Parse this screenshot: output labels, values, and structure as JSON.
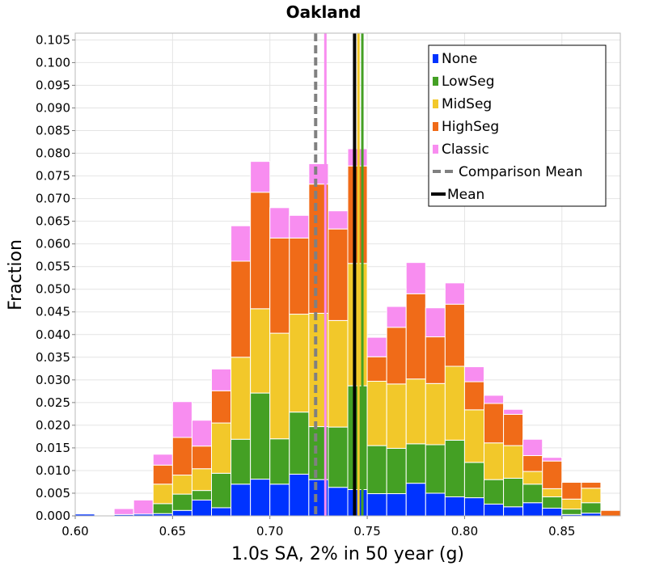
{
  "chart_data": {
    "type": "bar",
    "stacked": true,
    "title": "Oakland",
    "xlabel": "1.0s SA, 2% in 50 year (g)",
    "ylabel": "Fraction",
    "xlim": [
      0.6,
      0.88
    ],
    "ylim": [
      0.0,
      0.1065
    ],
    "grid": true,
    "legend_position": "top-right",
    "bin_width": 0.01,
    "x_ticks": [
      "0.60",
      "0.65",
      "0.70",
      "0.75",
      "0.80",
      "0.85"
    ],
    "x_tick_values": [
      0.6,
      0.65,
      0.7,
      0.75,
      0.8,
      0.85
    ],
    "y_ticks": [
      "0.000",
      "0.005",
      "0.010",
      "0.015",
      "0.020",
      "0.025",
      "0.030",
      "0.035",
      "0.040",
      "0.045",
      "0.050",
      "0.055",
      "0.060",
      "0.065",
      "0.070",
      "0.075",
      "0.080",
      "0.085",
      "0.090",
      "0.095",
      "0.100",
      "0.105"
    ],
    "y_tick_values": [
      0.0,
      0.005,
      0.01,
      0.015,
      0.02,
      0.025,
      0.03,
      0.035,
      0.04,
      0.045,
      0.05,
      0.055,
      0.06,
      0.065,
      0.07,
      0.075,
      0.08,
      0.085,
      0.09,
      0.095,
      0.1,
      0.105
    ],
    "bins": [
      0.605,
      0.615,
      0.625,
      0.635,
      0.645,
      0.655,
      0.665,
      0.675,
      0.685,
      0.695,
      0.705,
      0.715,
      0.725,
      0.735,
      0.745,
      0.755,
      0.765,
      0.775,
      0.785,
      0.795,
      0.805,
      0.815,
      0.825,
      0.835,
      0.845,
      0.855,
      0.865,
      0.875
    ],
    "series": [
      {
        "name": "None",
        "color": "#0033ff",
        "values": [
          0.0004,
          0.0,
          0.0003,
          0.0004,
          0.0005,
          0.0012,
          0.0035,
          0.0018,
          0.007,
          0.0081,
          0.007,
          0.0092,
          0.008,
          0.0063,
          0.0058,
          0.0049,
          0.0049,
          0.0072,
          0.005,
          0.0042,
          0.004,
          0.0026,
          0.002,
          0.0029,
          0.0017,
          0.0003,
          0.0006,
          0.0
        ]
      },
      {
        "name": "LowSeg",
        "color": "#44a024",
        "values": [
          0.0,
          0.0,
          0.0,
          0.0,
          0.0022,
          0.0036,
          0.0021,
          0.0076,
          0.0099,
          0.019,
          0.01,
          0.0137,
          0.0117,
          0.0133,
          0.0229,
          0.0106,
          0.01,
          0.0087,
          0.0107,
          0.0125,
          0.0078,
          0.0054,
          0.0063,
          0.0041,
          0.0025,
          0.0012,
          0.0023,
          0.0
        ]
      },
      {
        "name": "MidSeg",
        "color": "#f2c82a",
        "values": [
          0.0,
          0.0,
          0.0,
          0.0,
          0.0043,
          0.0042,
          0.0048,
          0.0111,
          0.0181,
          0.0186,
          0.0233,
          0.0216,
          0.025,
          0.0235,
          0.027,
          0.0142,
          0.0142,
          0.0143,
          0.0135,
          0.0163,
          0.0116,
          0.0081,
          0.0072,
          0.0028,
          0.0018,
          0.0022,
          0.0032,
          0.0
        ]
      },
      {
        "name": "HighSeg",
        "color": "#f06b18",
        "values": [
          0.0,
          0.0,
          0.0,
          0.0,
          0.0042,
          0.0083,
          0.005,
          0.0071,
          0.0212,
          0.0257,
          0.021,
          0.0168,
          0.0285,
          0.0202,
          0.0215,
          0.0054,
          0.0125,
          0.0188,
          0.0103,
          0.0137,
          0.0062,
          0.0087,
          0.0069,
          0.0035,
          0.0061,
          0.0037,
          0.0013,
          0.0012
        ]
      },
      {
        "name": "Classic",
        "color": "#f88df0",
        "values": [
          0.0,
          0.0,
          0.0013,
          0.0031,
          0.0024,
          0.0079,
          0.0057,
          0.0048,
          0.0078,
          0.0068,
          0.0067,
          0.005,
          0.0045,
          0.004,
          0.0038,
          0.0043,
          0.0046,
          0.0069,
          0.0064,
          0.0047,
          0.0033,
          0.0018,
          0.0011,
          0.0036,
          0.0008,
          0.0,
          0.0,
          0.0
        ]
      }
    ],
    "vertical_lines": [
      {
        "name": "Comparison Mean",
        "x": 0.7235,
        "color": "#808080",
        "style": "dashed"
      },
      {
        "name": "Mean",
        "x": 0.7435,
        "color": "#000000",
        "style": "solid"
      },
      {
        "name": "Classic mean",
        "x": 0.7285,
        "color": "#f88df0",
        "style": "solid"
      },
      {
        "name": "LowSeg mean",
        "x": 0.7475,
        "color": "#44a024",
        "style": "solid"
      },
      {
        "name": "MidSeg mean",
        "x": 0.7455,
        "color": "#f2c82a",
        "style": "solid"
      }
    ],
    "legend": [
      {
        "label": "None",
        "kind": "box",
        "color": "#0033ff"
      },
      {
        "label": "LowSeg",
        "kind": "box",
        "color": "#44a024"
      },
      {
        "label": "MidSeg",
        "kind": "box",
        "color": "#f2c82a"
      },
      {
        "label": "HighSeg",
        "kind": "box",
        "color": "#f06b18"
      },
      {
        "label": "Classic",
        "kind": "box",
        "color": "#f88df0"
      },
      {
        "label": "Comparison Mean",
        "kind": "dashed",
        "color": "#808080"
      },
      {
        "label": "Mean",
        "kind": "line",
        "color": "#000000"
      }
    ]
  }
}
